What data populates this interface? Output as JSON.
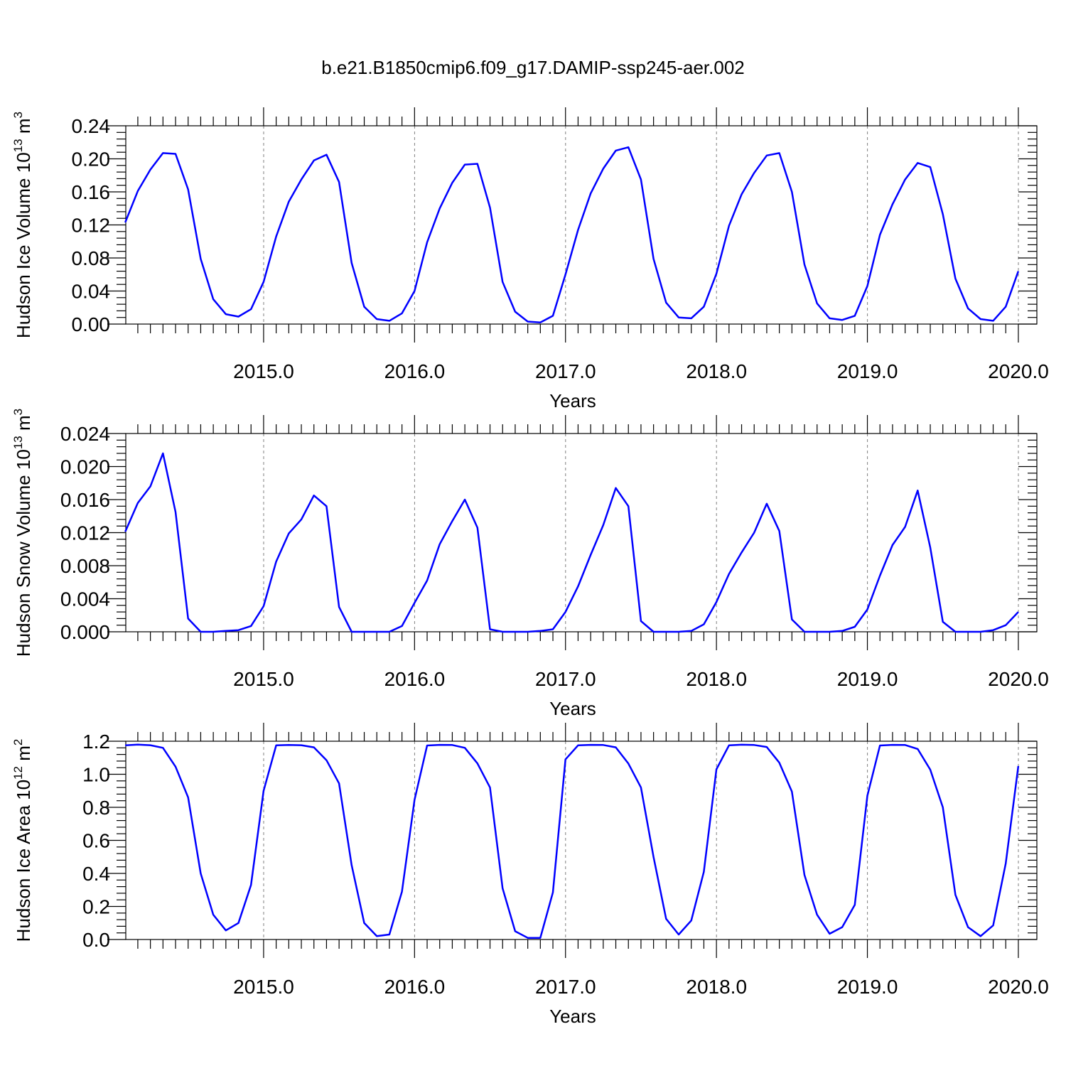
{
  "title": "b.e21.B1850cmip6.f09_g17.DAMIP-ssp245-aer.002",
  "colors": {
    "line": "#0000ff",
    "grid": "#7f7f7f",
    "axis": "#000000"
  },
  "chart_data": [
    {
      "type": "line",
      "ylabel_main": "Hudson Ice Volume 10",
      "ylabel_exp": "13",
      "ylabel_unit": " m",
      "ylabel_unit_exp": "3",
      "xlabel": "Years",
      "xlim": [
        2014.083,
        2020.0
      ],
      "ylim": [
        0.0,
        0.24
      ],
      "x_ticks": [
        2015.0,
        2016.0,
        2017.0,
        2018.0,
        2019.0,
        2020.0
      ],
      "x_tick_labels": [
        "2015.0",
        "2016.0",
        "2017.0",
        "2018.0",
        "2019.0",
        "2020.0"
      ],
      "y_ticks": [
        0.0,
        0.04,
        0.08,
        0.12,
        0.16,
        0.2,
        0.24
      ],
      "y_tick_labels": [
        "0.00",
        "0.04",
        "0.08",
        "0.12",
        "0.16",
        "0.20",
        "0.24"
      ],
      "grid": "vertical dashed at major x ticks",
      "series": [
        {
          "values": [
            0.123,
            0.161,
            0.187,
            0.207,
            0.206,
            0.163,
            0.079,
            0.03,
            0.012,
            0.009,
            0.018,
            0.051,
            0.106,
            0.148,
            0.175,
            0.198,
            0.205,
            0.172,
            0.074,
            0.021,
            0.006,
            0.004,
            0.013,
            0.04,
            0.099,
            0.14,
            0.171,
            0.193,
            0.194,
            0.141,
            0.051,
            0.015,
            0.003,
            0.002,
            0.01,
            0.06,
            0.114,
            0.158,
            0.188,
            0.21,
            0.214,
            0.175,
            0.079,
            0.026,
            0.008,
            0.007,
            0.021,
            0.061,
            0.119,
            0.157,
            0.183,
            0.204,
            0.207,
            0.16,
            0.072,
            0.025,
            0.007,
            0.005,
            0.01,
            0.046,
            0.108,
            0.145,
            0.175,
            0.195,
            0.19,
            0.133,
            0.055,
            0.019,
            0.006,
            0.004,
            0.021,
            0.064
          ]
        }
      ]
    },
    {
      "type": "line",
      "ylabel_main": "Hudson Snow Volume 10",
      "ylabel_exp": "13",
      "ylabel_unit": " m",
      "ylabel_unit_exp": "3",
      "xlabel": "Years",
      "xlim": [
        2014.083,
        2020.0
      ],
      "ylim": [
        0.0,
        0.024
      ],
      "x_ticks": [
        2015.0,
        2016.0,
        2017.0,
        2018.0,
        2019.0,
        2020.0
      ],
      "x_tick_labels": [
        "2015.0",
        "2016.0",
        "2017.0",
        "2018.0",
        "2019.0",
        "2020.0"
      ],
      "y_ticks": [
        0.0,
        0.004,
        0.008,
        0.012,
        0.016,
        0.02,
        0.024
      ],
      "y_tick_labels": [
        "0.000",
        "0.004",
        "0.008",
        "0.012",
        "0.016",
        "0.020",
        "0.024"
      ],
      "grid": "vertical dashed at major x ticks",
      "series": [
        {
          "values": [
            0.0121,
            0.0156,
            0.0176,
            0.0216,
            0.0145,
            0.0016,
            0.0,
            0.0,
            0.0001,
            0.0002,
            0.0007,
            0.0031,
            0.0085,
            0.0119,
            0.0136,
            0.0165,
            0.0152,
            0.003,
            0.0,
            0.0,
            0.0,
            0.0,
            0.0007,
            0.0035,
            0.0062,
            0.0106,
            0.0134,
            0.016,
            0.0126,
            0.0003,
            0.0,
            0.0,
            0.0,
            0.0001,
            0.0003,
            0.0024,
            0.0055,
            0.0093,
            0.0129,
            0.0174,
            0.0152,
            0.0013,
            0.0,
            0.0,
            0.0,
            0.0001,
            0.0009,
            0.0036,
            0.007,
            0.0096,
            0.012,
            0.0155,
            0.0122,
            0.0015,
            0.0,
            0.0,
            0.0,
            0.0001,
            0.0006,
            0.0027,
            0.0068,
            0.0105,
            0.0127,
            0.0171,
            0.0102,
            0.0012,
            0.0,
            0.0,
            0.0,
            0.0002,
            0.0008,
            0.0024
          ]
        }
      ]
    },
    {
      "type": "line",
      "ylabel_main": "Hudson Ice Area 10",
      "ylabel_exp": "12",
      "ylabel_unit": " m",
      "ylabel_unit_exp": "2",
      "xlabel": "Years",
      "xlim": [
        2014.083,
        2020.0
      ],
      "ylim": [
        0.0,
        1.2
      ],
      "x_ticks": [
        2015.0,
        2016.0,
        2017.0,
        2018.0,
        2019.0,
        2020.0
      ],
      "x_tick_labels": [
        "2015.0",
        "2016.0",
        "2017.0",
        "2018.0",
        "2019.0",
        "2020.0"
      ],
      "y_ticks": [
        0.0,
        0.2,
        0.4,
        0.6,
        0.8,
        1.0,
        1.2
      ],
      "y_tick_labels": [
        "0.0",
        "0.2",
        "0.4",
        "0.6",
        "0.8",
        "1.0",
        "1.2"
      ],
      "grid": "vertical dashed at major x ticks",
      "series": [
        {
          "values": [
            1.175,
            1.18,
            1.176,
            1.16,
            1.046,
            0.86,
            0.4,
            0.15,
            0.055,
            0.1,
            0.33,
            0.9,
            1.175,
            1.177,
            1.176,
            1.163,
            1.085,
            0.945,
            0.45,
            0.1,
            0.02,
            0.03,
            0.29,
            0.845,
            1.174,
            1.178,
            1.177,
            1.16,
            1.066,
            0.92,
            0.31,
            0.05,
            0.01,
            0.01,
            0.285,
            1.09,
            1.175,
            1.178,
            1.177,
            1.163,
            1.065,
            0.92,
            0.5,
            0.125,
            0.03,
            0.115,
            0.41,
            1.03,
            1.175,
            1.179,
            1.177,
            1.165,
            1.07,
            0.895,
            0.39,
            0.15,
            0.035,
            0.075,
            0.21,
            0.87,
            1.174,
            1.178,
            1.177,
            1.153,
            1.028,
            0.8,
            0.27,
            0.075,
            0.02,
            0.085,
            0.46,
            1.05
          ]
        }
      ]
    }
  ]
}
